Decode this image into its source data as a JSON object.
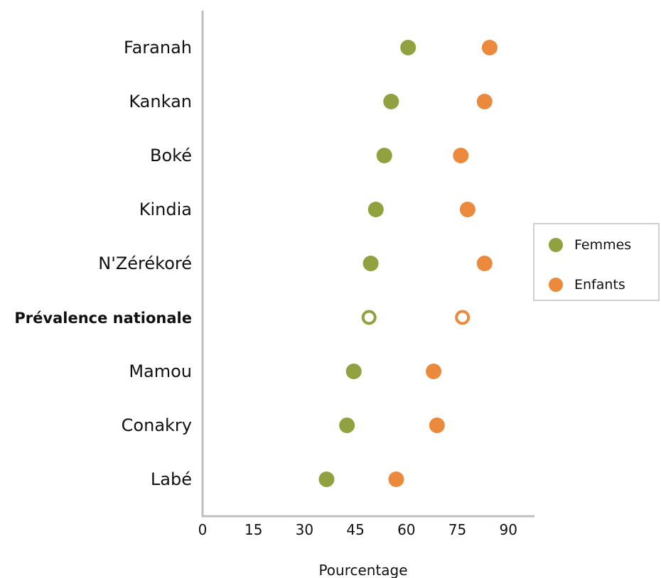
{
  "colors": {
    "femmes": "#8fa23f",
    "enfants": "#eb8a3c",
    "axis": "#bfbfbf"
  },
  "chart_data": {
    "type": "scatter",
    "title": "",
    "xlabel": "Pourcentage",
    "ylabel": "",
    "xlim": [
      0,
      97
    ],
    "xticks": [
      0,
      15,
      30,
      45,
      60,
      75,
      90
    ],
    "categories": [
      "Faranah",
      "Kankan",
      "Boké",
      "Kindia",
      "N'Zérékoré",
      "Prévalence nationale",
      "Mamou",
      "Conakry",
      "Labé"
    ],
    "highlight_category": "Prévalence nationale",
    "series": [
      {
        "name": "Femmes",
        "values": [
          60.5,
          55.5,
          53.5,
          51.0,
          49.5,
          49.0,
          44.5,
          42.5,
          36.5
        ]
      },
      {
        "name": "Enfants",
        "values": [
          84.5,
          83.0,
          76.0,
          78.0,
          83.0,
          76.5,
          68.0,
          69.0,
          57.0
        ]
      }
    ],
    "legend_position": "right"
  }
}
